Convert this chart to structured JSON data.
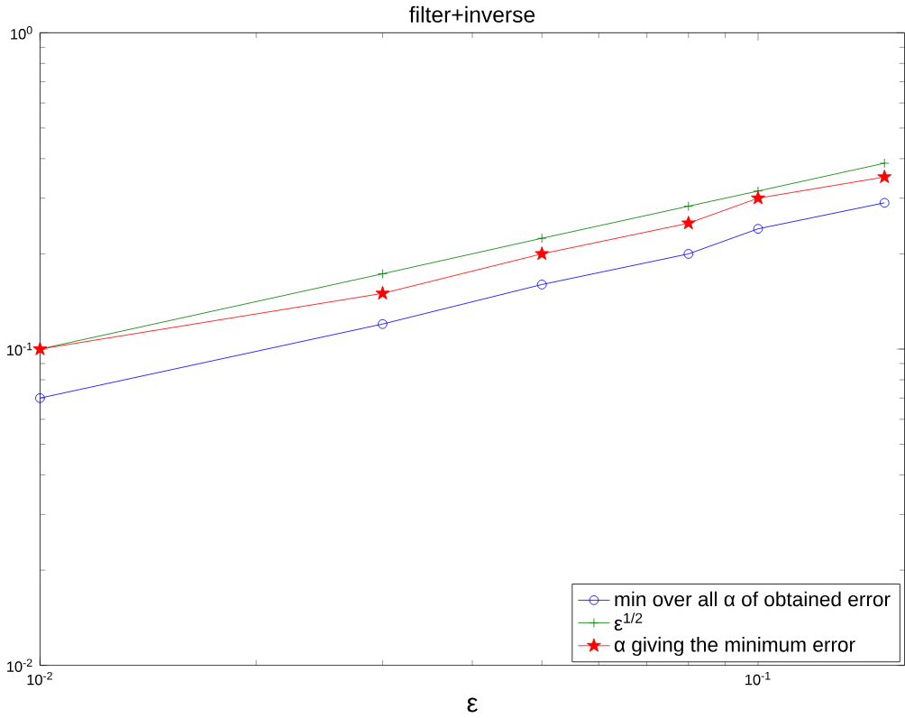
{
  "chart_data": {
    "type": "line",
    "title": "filter+inverse",
    "xlabel": "ε",
    "log": "xy",
    "x": [
      0.01,
      0.03,
      0.05,
      0.08,
      0.1,
      0.15
    ],
    "series": [
      {
        "name": "min over all α of obtained error",
        "color": "#0000ff",
        "marker": "circle",
        "values": [
          0.07,
          0.12,
          0.16,
          0.2,
          0.24,
          0.29
        ]
      },
      {
        "name": "ε$^{1/2}$",
        "color": "#008000",
        "marker": "cross",
        "values": [
          0.1,
          0.173,
          0.224,
          0.283,
          0.316,
          0.387
        ]
      },
      {
        "name": "α giving the minimum error",
        "color": "#ff0000",
        "marker": "star",
        "values": [
          0.1,
          0.15,
          0.2,
          0.25,
          0.3,
          0.35
        ]
      }
    ],
    "xlim": [
      0.01,
      0.16
    ],
    "ylim": [
      0.01,
      1
    ],
    "xticks": [
      {
        "value": 0.01,
        "label": "10$^{-2}$"
      },
      {
        "value": 0.1,
        "label": "10$^{-1}$"
      }
    ],
    "yticks": [
      {
        "value": 0.01,
        "label": "10$^{-2}$"
      },
      {
        "value": 0.1,
        "label": "10$^{-1}$"
      },
      {
        "value": 1,
        "label": "10$^{0}$"
      }
    ],
    "grid": false,
    "legend": "bottom right"
  }
}
